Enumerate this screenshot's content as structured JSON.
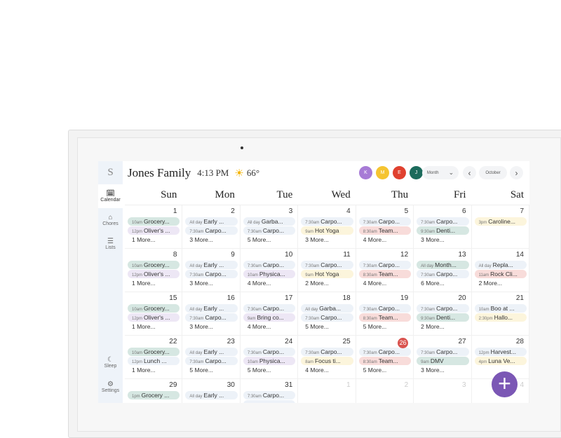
{
  "sidebar": {
    "initial": "S",
    "items": [
      {
        "label": "Calendar",
        "icon": "calendar-icon",
        "glyph": "🗓"
      },
      {
        "label": "Chores",
        "icon": "broom-icon",
        "glyph": "⌂"
      },
      {
        "label": "Lists",
        "icon": "list-icon",
        "glyph": "☰"
      },
      {
        "label": "Sleep",
        "icon": "moon-icon",
        "glyph": "☾"
      },
      {
        "label": "Settings",
        "icon": "gear-icon",
        "glyph": "⚙"
      }
    ]
  },
  "header": {
    "title": "Jones Family",
    "time": "4:13 PM",
    "weather_icon": "sun-icon",
    "temperature": "66°"
  },
  "profiles": [
    {
      "initial": "K",
      "color": "#a77bd6"
    },
    {
      "initial": "M",
      "color": "#f5c431"
    },
    {
      "initial": "E",
      "color": "#e0412f"
    },
    {
      "initial": "J",
      "color": "#1c6b5c"
    }
  ],
  "view": {
    "mode": "Month",
    "month": "October",
    "prev": "‹",
    "next": "›",
    "dropdown": "⌄"
  },
  "weekdays": [
    "Sun",
    "Mon",
    "Tue",
    "Wed",
    "Thu",
    "Fri",
    "Sat"
  ],
  "colors": {
    "g": "#d6e7e2",
    "p": "#ede7f5",
    "b": "#edf2f8",
    "y": "#fcf5dc",
    "r": "#f8dcda"
  },
  "weeks": [
    [
      {
        "date": "1",
        "events": [
          {
            "time": "10am",
            "title": "Grocery...",
            "c": "g"
          },
          {
            "time": "12pm",
            "title": "Oliver's ...",
            "c": "p"
          }
        ],
        "more": "1 More..."
      },
      {
        "date": "2",
        "events": [
          {
            "time": "All day",
            "title": "Early ...",
            "c": "b"
          },
          {
            "time": "7:30am",
            "title": "Carpo...",
            "c": "b"
          }
        ],
        "more": "3 More..."
      },
      {
        "date": "3",
        "events": [
          {
            "time": "All day",
            "title": "Garba...",
            "c": "b"
          },
          {
            "time": "7:30am",
            "title": "Carpo...",
            "c": "b"
          }
        ],
        "more": "5 More..."
      },
      {
        "date": "4",
        "events": [
          {
            "time": "7:30am",
            "title": "Carpo...",
            "c": "b"
          },
          {
            "time": "9am",
            "title": "Hot Yoga",
            "c": "y"
          }
        ],
        "more": "3 More..."
      },
      {
        "date": "5",
        "events": [
          {
            "time": "7:30am",
            "title": "Carpo...",
            "c": "b"
          },
          {
            "time": "8:30am",
            "title": "Team...",
            "c": "r"
          }
        ],
        "more": "4 More..."
      },
      {
        "date": "6",
        "events": [
          {
            "time": "7:30am",
            "title": "Carpo...",
            "c": "b"
          },
          {
            "time": "9:30am",
            "title": "Denti...",
            "c": "g"
          }
        ],
        "more": "3 More..."
      },
      {
        "date": "7",
        "events": [
          {
            "time": "3pm",
            "title": "Caroline...",
            "c": "y"
          }
        ]
      }
    ],
    [
      {
        "date": "8",
        "events": [
          {
            "time": "10am",
            "title": "Grocery...",
            "c": "g"
          },
          {
            "time": "12pm",
            "title": "Oliver's ...",
            "c": "p"
          }
        ],
        "more": "1 More..."
      },
      {
        "date": "9",
        "events": [
          {
            "time": "All day",
            "title": "Early ...",
            "c": "b"
          },
          {
            "time": "7:30am",
            "title": "Carpo...",
            "c": "b"
          }
        ],
        "more": "3 More..."
      },
      {
        "date": "10",
        "events": [
          {
            "time": "7:30am",
            "title": "Carpo...",
            "c": "b"
          },
          {
            "time": "10am",
            "title": "Physica...",
            "c": "p"
          }
        ],
        "more": "4 More..."
      },
      {
        "date": "11",
        "events": [
          {
            "time": "7:30am",
            "title": "Carpo...",
            "c": "b"
          },
          {
            "time": "9am",
            "title": "Hot Yoga",
            "c": "y"
          }
        ],
        "more": "2 More..."
      },
      {
        "date": "12",
        "events": [
          {
            "time": "7:30am",
            "title": "Carpo...",
            "c": "b"
          },
          {
            "time": "8:30am",
            "title": "Team...",
            "c": "r"
          }
        ],
        "more": "4 More..."
      },
      {
        "date": "13",
        "events": [
          {
            "time": "All day",
            "title": "Month...",
            "c": "g"
          },
          {
            "time": "7:30am",
            "title": "Carpo...",
            "c": "b"
          }
        ],
        "more": "6 More..."
      },
      {
        "date": "14",
        "events": [
          {
            "time": "All day",
            "title": "Repla...",
            "c": "b"
          },
          {
            "time": "11am",
            "title": "Rock Cli...",
            "c": "r"
          }
        ],
        "more": "2 More..."
      }
    ],
    [
      {
        "date": "15",
        "events": [
          {
            "time": "10am",
            "title": "Grocery...",
            "c": "g"
          },
          {
            "time": "12pm",
            "title": "Oliver's ...",
            "c": "p"
          }
        ],
        "more": "1 More..."
      },
      {
        "date": "16",
        "events": [
          {
            "time": "All day",
            "title": "Early ...",
            "c": "b"
          },
          {
            "time": "7:30am",
            "title": "Carpo...",
            "c": "b"
          }
        ],
        "more": "3 More..."
      },
      {
        "date": "17",
        "events": [
          {
            "time": "7:30am",
            "title": "Carpo...",
            "c": "b"
          },
          {
            "time": "9am",
            "title": "Bring co...",
            "c": "p"
          }
        ],
        "more": "4 More..."
      },
      {
        "date": "18",
        "events": [
          {
            "time": "All day",
            "title": "Garba...",
            "c": "b"
          },
          {
            "time": "7:30am",
            "title": "Carpo...",
            "c": "b"
          }
        ],
        "more": "5 More..."
      },
      {
        "date": "19",
        "events": [
          {
            "time": "7:30am",
            "title": "Carpo...",
            "c": "b"
          },
          {
            "time": "8:30am",
            "title": "Team...",
            "c": "r"
          }
        ],
        "more": "5 More..."
      },
      {
        "date": "20",
        "events": [
          {
            "time": "7:30am",
            "title": "Carpo...",
            "c": "b"
          },
          {
            "time": "9:30am",
            "title": "Denti...",
            "c": "g"
          }
        ],
        "more": "2 More..."
      },
      {
        "date": "21",
        "events": [
          {
            "time": "10am",
            "title": "Boo at ...",
            "c": "b"
          },
          {
            "time": "2:30pm",
            "title": "Hallo...",
            "c": "y"
          }
        ]
      }
    ],
    [
      {
        "date": "22",
        "events": [
          {
            "time": "10am",
            "title": "Grocery...",
            "c": "g"
          },
          {
            "time": "12pm",
            "title": "Lunch ...",
            "c": "b"
          }
        ],
        "more": "1 More..."
      },
      {
        "date": "23",
        "events": [
          {
            "time": "All day",
            "title": "Early ...",
            "c": "b"
          },
          {
            "time": "7:30am",
            "title": "Carpo...",
            "c": "b"
          }
        ],
        "more": "5 More..."
      },
      {
        "date": "24",
        "events": [
          {
            "time": "7:30am",
            "title": "Carpo...",
            "c": "b"
          },
          {
            "time": "10am",
            "title": "Physica...",
            "c": "p"
          }
        ],
        "more": "5 More..."
      },
      {
        "date": "25",
        "events": [
          {
            "time": "7:30am",
            "title": "Carpo...",
            "c": "b"
          },
          {
            "time": "8am",
            "title": "Focus ti...",
            "c": "y"
          }
        ],
        "more": "4 More..."
      },
      {
        "date": "26",
        "today": true,
        "events": [
          {
            "time": "7:30am",
            "title": "Carpo...",
            "c": "b"
          },
          {
            "time": "8:30am",
            "title": "Team...",
            "c": "r"
          }
        ],
        "more": "5 More..."
      },
      {
        "date": "27",
        "events": [
          {
            "time": "7:30am",
            "title": "Carpo...",
            "c": "b"
          },
          {
            "time": "9am",
            "title": "DMV",
            "c": "g"
          }
        ],
        "more": "3 More..."
      },
      {
        "date": "28",
        "events": [
          {
            "time": "12pm",
            "title": "Harvest...",
            "c": "b"
          },
          {
            "time": "4pm",
            "title": "Luna Ve...",
            "c": "y"
          }
        ]
      }
    ],
    [
      {
        "date": "29",
        "events": [
          {
            "time": "1pm",
            "title": "Grocery ...",
            "c": "g"
          }
        ]
      },
      {
        "date": "30",
        "events": [
          {
            "time": "All day",
            "title": "Early ...",
            "c": "b"
          }
        ]
      },
      {
        "date": "31",
        "events": [
          {
            "time": "7:30am",
            "title": "Carpo...",
            "c": "b"
          }
        ]
      },
      {
        "date": "1",
        "muted": true,
        "events": []
      },
      {
        "date": "2",
        "muted": true,
        "events": []
      },
      {
        "date": "3",
        "muted": true,
        "events": []
      },
      {
        "date": "4",
        "muted": true,
        "events": []
      }
    ]
  ],
  "fab": {
    "label": "+",
    "icon": "plus-icon"
  }
}
